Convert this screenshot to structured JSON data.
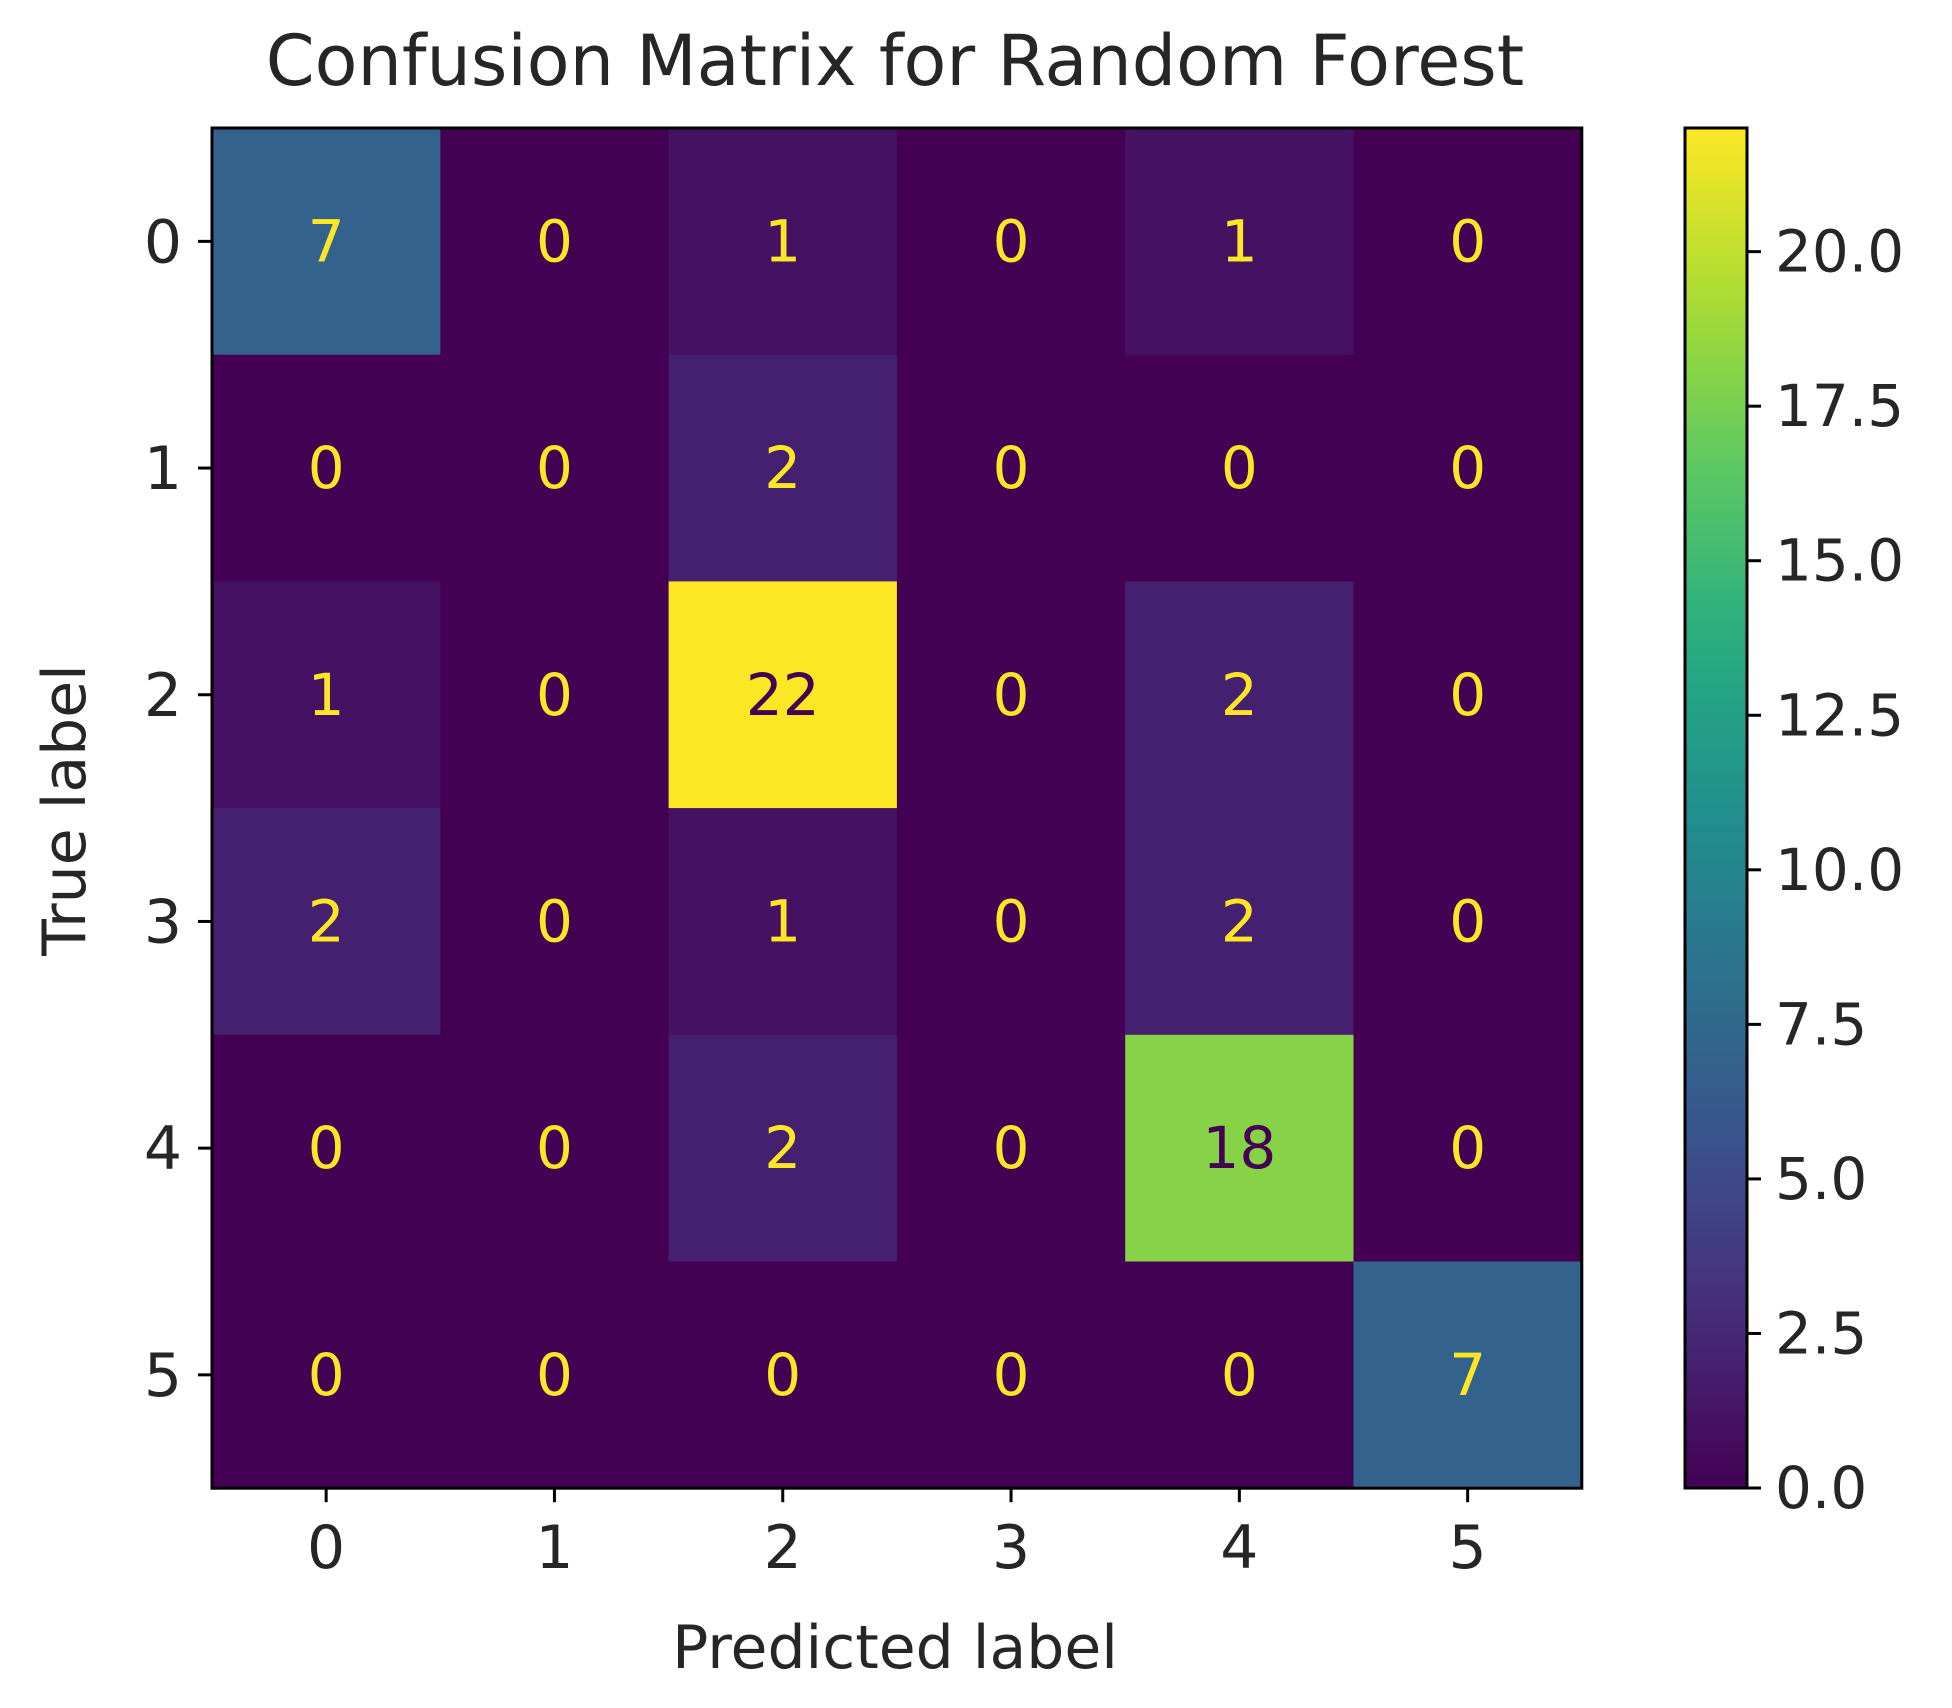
{
  "chart_data": {
    "type": "heatmap",
    "title": "Confusion Matrix for Random Forest",
    "xlabel": "Predicted label",
    "ylabel": "True label",
    "x_categories": [
      "0",
      "1",
      "2",
      "3",
      "4",
      "5"
    ],
    "y_categories": [
      "0",
      "1",
      "2",
      "3",
      "4",
      "5"
    ],
    "matrix": [
      [
        7,
        0,
        1,
        0,
        1,
        0
      ],
      [
        0,
        0,
        2,
        0,
        0,
        0
      ],
      [
        1,
        0,
        22,
        0,
        2,
        0
      ],
      [
        2,
        0,
        1,
        0,
        2,
        0
      ],
      [
        0,
        0,
        2,
        0,
        18,
        0
      ],
      [
        0,
        0,
        0,
        0,
        0,
        7
      ]
    ],
    "colormap": "viridis",
    "value_range": [
      0,
      22
    ],
    "colorbar_ticks": [
      "0.0",
      "2.5",
      "5.0",
      "7.5",
      "10.0",
      "12.5",
      "15.0",
      "17.5",
      "20.0"
    ],
    "text_color_light": "#fde725",
    "text_color_dark": "#440154"
  }
}
